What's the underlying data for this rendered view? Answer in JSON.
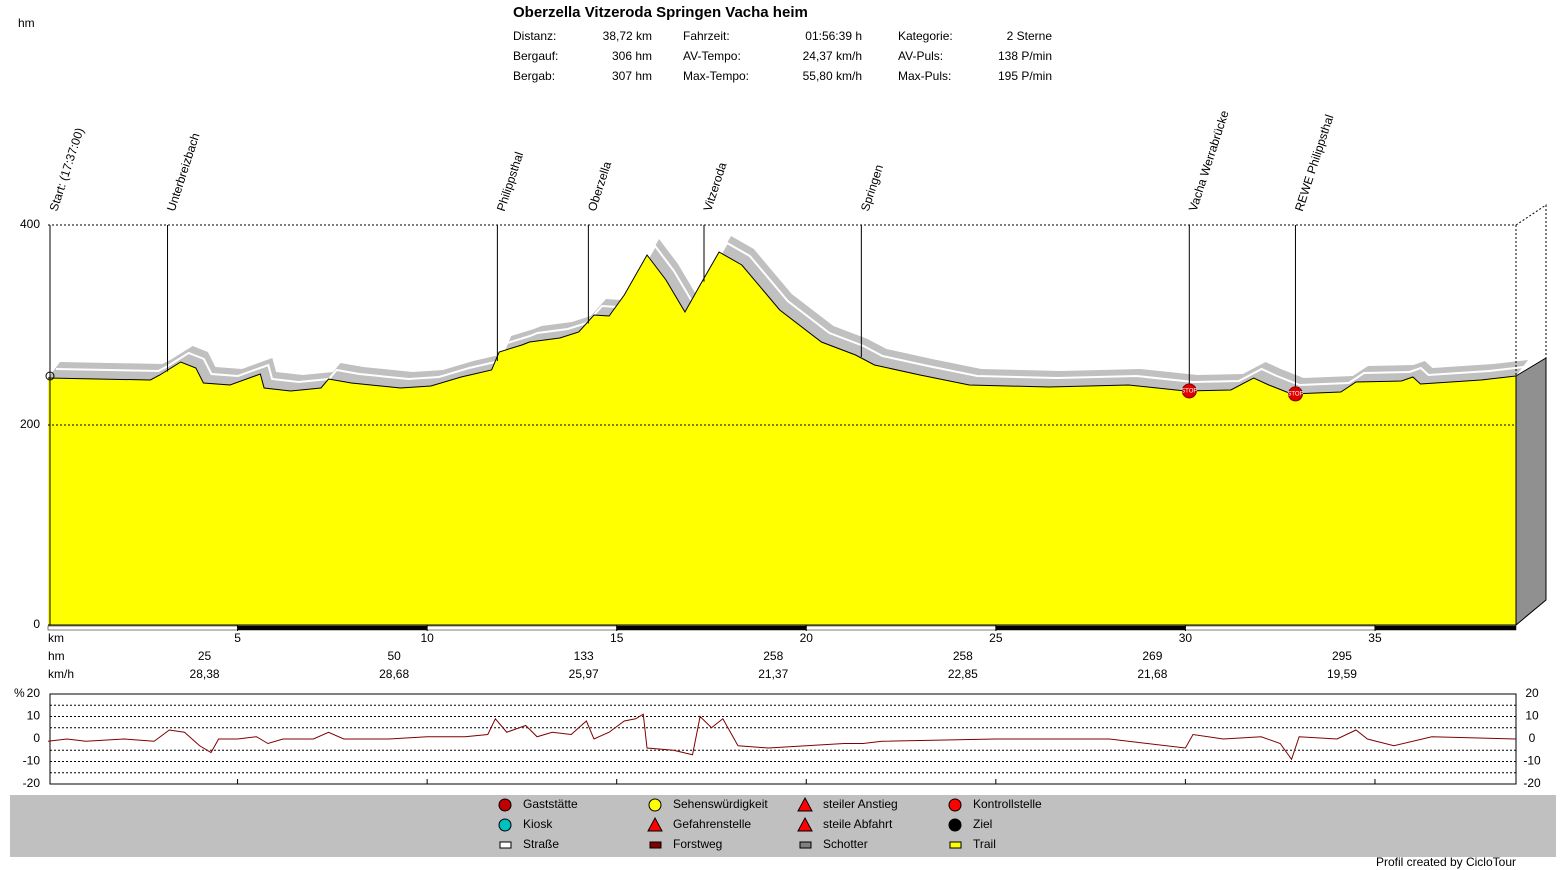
{
  "title": "Oberzella Vitzeroda Springen Vacha heim",
  "stats": [
    [
      [
        "Distanz:",
        "38,72 km"
      ],
      [
        "Fahrzeit:",
        "01:56:39 h"
      ],
      [
        "Kategorie:",
        "2 Sterne"
      ]
    ],
    [
      [
        "Bergauf:",
        "306 hm"
      ],
      [
        "AV-Tempo:",
        "24,37 km/h"
      ],
      [
        "AV-Puls:",
        "138 P/min"
      ]
    ],
    [
      [
        "Bergab:",
        "307 hm"
      ],
      [
        "Max-Tempo:",
        "55,80 km/h"
      ],
      [
        "Max-Puls:",
        "195 P/min"
      ]
    ]
  ],
  "chart_data": [
    {
      "type": "area",
      "y_label": "hm",
      "x_label": "km",
      "x": [
        0,
        2.7,
        2.95,
        3.5,
        3.9,
        4.1,
        4.8,
        5.6,
        5.7,
        6.4,
        7.2,
        7.4,
        8.0,
        9.3,
        10.1,
        10.9,
        11.7,
        11.9,
        12.5,
        12.7,
        13.5,
        14.0,
        14.4,
        14.8,
        15.2,
        15.8,
        16.3,
        16.8,
        17.2,
        17.7,
        18.3,
        19.3,
        20.4,
        21.3,
        21.8,
        23.0,
        24.3,
        26.4,
        28.5,
        30.0,
        31.2,
        31.8,
        32.2,
        32.8,
        34.1,
        34.5,
        35.7,
        36.0,
        36.2,
        37.8,
        38.72
      ],
      "series": [
        {
          "color": "#ffff00",
          "values": [
            247,
            245,
            250,
            263,
            257,
            242,
            240,
            251,
            237,
            234,
            237,
            246,
            242,
            237,
            239,
            248,
            255,
            273,
            280,
            283,
            287,
            293,
            310,
            309,
            330,
            370,
            345,
            313,
            340,
            373,
            360,
            315,
            283,
            270,
            260,
            250,
            240,
            238,
            240,
            234,
            235,
            247,
            240,
            231,
            233,
            243,
            244,
            248,
            241,
            245,
            249
          ]
        }
      ],
      "xlim": [
        0,
        38.72
      ],
      "xticks": [
        5,
        10,
        15,
        20,
        25,
        30,
        35
      ],
      "ylim": [
        0,
        400
      ],
      "yticks": [
        0,
        200,
        400
      ],
      "grid": true,
      "waypoints": [
        {
          "label": "Start: (17:37:00)",
          "km": 0
        },
        {
          "label": "Unterbreizbach",
          "km": 3.1
        },
        {
          "label": "Philippsthal",
          "km": 11.8
        },
        {
          "label": "Oberzella",
          "km": 14.2
        },
        {
          "label": "Vitzeroda",
          "km": 17.25
        },
        {
          "label": "Springen",
          "km": 21.4
        },
        {
          "label": "Vacha Werrabrücke",
          "km": 30.05
        },
        {
          "label": "REWE Philippsthal",
          "km": 32.85
        }
      ],
      "rows": [
        {
          "label": "hm",
          "color": "#cc0000",
          "values": [
            25,
            50,
            133,
            258,
            258,
            269,
            295
          ]
        },
        {
          "label": "km/h",
          "color": "#000000",
          "values": [
            "28,38",
            "28,68",
            "25,97",
            "21,37",
            "22,85",
            "21,68",
            "19,59"
          ]
        }
      ]
    },
    {
      "type": "line",
      "y_label": "%",
      "color": "#800000",
      "x": [
        0,
        0.5,
        1,
        2,
        2.8,
        3.2,
        3.6,
        4.0,
        4.3,
        4.5,
        5.0,
        5.5,
        5.8,
        6.2,
        7.0,
        7.4,
        7.8,
        9,
        10,
        11,
        11.6,
        11.8,
        12.1,
        12.6,
        12.9,
        13.3,
        13.8,
        14.2,
        14.4,
        14.8,
        15.2,
        15.5,
        15.7,
        15.8,
        16.5,
        17.0,
        17.2,
        17.5,
        17.8,
        18.2,
        19,
        20,
        21,
        21.5,
        22,
        25,
        28,
        30,
        30.2,
        31,
        32,
        32.5,
        32.8,
        33,
        34,
        34.5,
        34.8,
        35.5,
        36.5,
        38.72
      ],
      "values": [
        -1,
        0,
        -1,
        0,
        -1,
        4,
        3,
        -3,
        -6,
        0,
        0,
        1,
        -2,
        0,
        0,
        3,
        0,
        0,
        1,
        1,
        2,
        9,
        3,
        6,
        1,
        3,
        2,
        8,
        0,
        3,
        8,
        9,
        11,
        -4,
        -5,
        -7,
        10,
        5,
        9,
        -3,
        -4,
        -3,
        -2,
        -2,
        -1,
        0,
        0,
        -4,
        2,
        0,
        1,
        -2,
        -9,
        1,
        0,
        4,
        0,
        -3,
        1,
        0
      ],
      "xlim": [
        0,
        38.72
      ],
      "ylim": [
        -20,
        20
      ],
      "yticks": [
        20,
        10,
        0,
        -10,
        -20
      ],
      "grid_values": [
        15,
        10,
        5,
        -5,
        -10,
        -15
      ]
    }
  ],
  "legend": [
    "Gaststätte",
    "Kiosk",
    "Straße",
    "Sehenswürdigkeit",
    "Gefahrenstelle",
    "Forstweg",
    "steiler Anstieg",
    "steile Abfahrt",
    "Schotter",
    "Kontrollstelle",
    "Ziel",
    "Trail"
  ],
  "footer": "Profil created by CicloTour"
}
